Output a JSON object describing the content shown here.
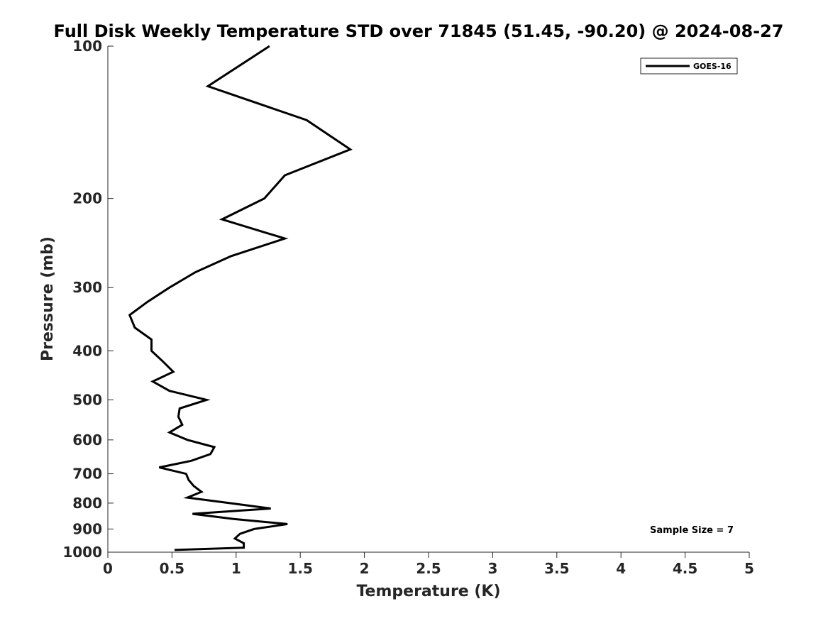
{
  "chart_data": {
    "type": "line",
    "title": "Full Disk Weekly Temperature STD over 71845 (51.45, -90.20) @ 2024-08-27",
    "xlabel": "Temperature (K)",
    "ylabel": "Pressure (mb)",
    "xlim": [
      0,
      5
    ],
    "ylim": [
      100,
      1000
    ],
    "yscale": "log",
    "y_reversed": true,
    "x_ticks": [
      "0",
      "0.5",
      "1",
      "1.5",
      "2",
      "2.5",
      "3",
      "3.5",
      "4",
      "4.5",
      "5"
    ],
    "x_tick_values": [
      0,
      0.5,
      1,
      1.5,
      2,
      2.5,
      3,
      3.5,
      4,
      4.5,
      5
    ],
    "y_ticks": [
      "100",
      "200",
      "300",
      "400",
      "500",
      "600",
      "700",
      "800",
      "900",
      "1000"
    ],
    "y_tick_values": [
      100,
      200,
      300,
      400,
      500,
      600,
      700,
      800,
      900,
      1000
    ],
    "grid": false,
    "legend_position": "top-right",
    "series": [
      {
        "name": "GOES-16",
        "color": "#000000",
        "points": [
          [
            1.26,
            100
          ],
          [
            0.78,
            120
          ],
          [
            1.55,
            140
          ],
          [
            1.89,
            160
          ],
          [
            1.38,
            180
          ],
          [
            1.22,
            200
          ],
          [
            0.89,
            220
          ],
          [
            1.38,
            240
          ],
          [
            0.96,
            260
          ],
          [
            0.68,
            280
          ],
          [
            0.48,
            300
          ],
          [
            0.31,
            320
          ],
          [
            0.17,
            340
          ],
          [
            0.21,
            360
          ],
          [
            0.34,
            380
          ],
          [
            0.34,
            400
          ],
          [
            0.43,
            420
          ],
          [
            0.51,
            440
          ],
          [
            0.35,
            460
          ],
          [
            0.48,
            480
          ],
          [
            0.77,
            500
          ],
          [
            0.56,
            520
          ],
          [
            0.55,
            540
          ],
          [
            0.58,
            560
          ],
          [
            0.48,
            580
          ],
          [
            0.62,
            600
          ],
          [
            0.83,
            620
          ],
          [
            0.8,
            640
          ],
          [
            0.65,
            660
          ],
          [
            0.4,
            680
          ],
          [
            0.61,
            700
          ],
          [
            0.63,
            720
          ],
          [
            0.67,
            740
          ],
          [
            0.73,
            760
          ],
          [
            0.62,
            780
          ],
          [
            0.95,
            800
          ],
          [
            1.27,
            820
          ],
          [
            0.66,
            840
          ],
          [
            0.98,
            860
          ],
          [
            1.4,
            880
          ],
          [
            1.14,
            900
          ],
          [
            1.03,
            920
          ],
          [
            0.99,
            940
          ],
          [
            1.06,
            960
          ],
          [
            1.06,
            980
          ],
          [
            0.52,
            990
          ]
        ]
      }
    ],
    "annotations": [
      "Sample Size = 7"
    ]
  }
}
